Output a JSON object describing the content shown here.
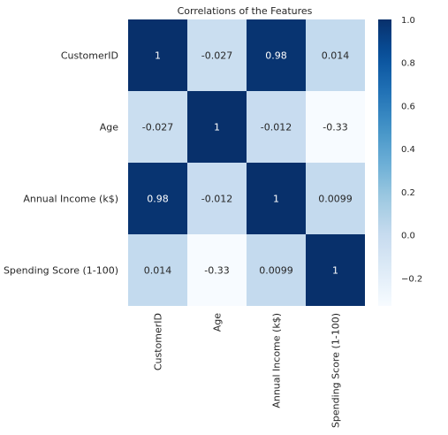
{
  "chart_data": {
    "type": "heatmap",
    "title": "Correlations of the Features",
    "xlabel": "",
    "ylabel": "",
    "rows": [
      "CustomerID",
      "Age",
      "Annual Income (k$)",
      "Spending Score (1-100)"
    ],
    "columns": [
      "CustomerID",
      "Age",
      "Annual Income (k$)",
      "Spending Score (1-100)"
    ],
    "values": [
      [
        1,
        -0.027,
        0.98,
        0.014
      ],
      [
        -0.027,
        1,
        -0.012,
        -0.33
      ],
      [
        0.98,
        -0.012,
        1,
        0.0099
      ],
      [
        0.014,
        -0.33,
        0.0099,
        1
      ]
    ],
    "cell_labels": [
      [
        "1",
        "-0.027",
        "0.98",
        "0.014"
      ],
      [
        "-0.027",
        "1",
        "-0.012",
        "-0.33"
      ],
      [
        "0.98",
        "-0.012",
        "1",
        "0.0099"
      ],
      [
        "0.014",
        "-0.33",
        "0.0099",
        "1"
      ]
    ],
    "colormap": "Blues",
    "color_range": [
      -0.33,
      1
    ],
    "colorbar_ticks": [
      1.0,
      0.8,
      0.6,
      0.4,
      0.2,
      0.0,
      -0.2
    ],
    "colorbar_tick_labels": [
      "1.0",
      "0.8",
      "0.6",
      "0.4",
      "0.2",
      "0.0",
      "−0.2"
    ],
    "grid": false,
    "legend": "colorbar-right"
  }
}
